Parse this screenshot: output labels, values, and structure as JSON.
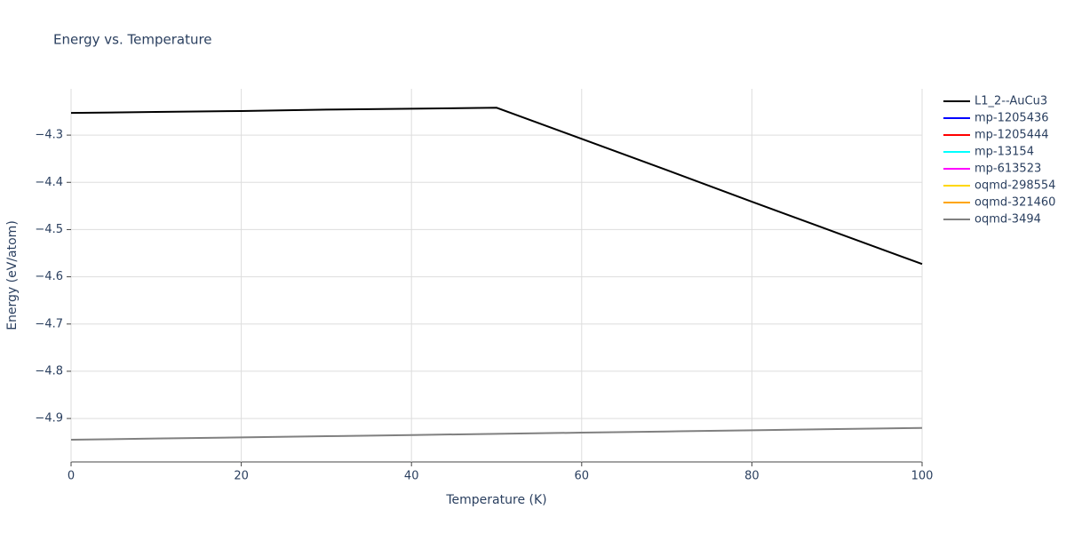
{
  "chart_data": {
    "type": "line",
    "title": "Energy vs. Temperature",
    "x_label": "Temperature (K)",
    "y_label": "Energy (eV/atom)",
    "x": [
      0,
      10,
      20,
      30,
      40,
      50,
      60,
      70,
      80,
      90,
      100
    ],
    "series": [
      {
        "name": "L1_2--AuCu3",
        "color": "#000000",
        "values": [
          -4.253,
          -4.251,
          -4.249,
          -4.246,
          -4.244,
          -4.242,
          -4.308,
          -4.374,
          -4.441,
          -4.507,
          -4.573
        ]
      },
      {
        "name": "mp-1205436",
        "color": "#0000ff",
        "values": [
          null,
          null,
          null,
          null,
          null,
          null,
          null,
          null,
          null,
          null,
          null
        ]
      },
      {
        "name": "mp-1205444",
        "color": "#ff0000",
        "values": [
          null,
          null,
          null,
          null,
          null,
          null,
          null,
          null,
          null,
          null,
          null
        ]
      },
      {
        "name": "mp-13154",
        "color": "#00ffff",
        "values": [
          null,
          null,
          null,
          null,
          null,
          null,
          null,
          null,
          null,
          null,
          null
        ]
      },
      {
        "name": "mp-613523",
        "color": "#ff00ff",
        "values": [
          null,
          null,
          null,
          null,
          null,
          null,
          null,
          null,
          null,
          null,
          null
        ]
      },
      {
        "name": "oqmd-298554",
        "color": "#ffd700",
        "values": [
          null,
          null,
          null,
          null,
          null,
          null,
          null,
          null,
          null,
          null,
          null
        ]
      },
      {
        "name": "oqmd-321460",
        "color": "#ffa500",
        "values": [
          null,
          null,
          null,
          null,
          null,
          null,
          null,
          null,
          null,
          null,
          null
        ]
      },
      {
        "name": "oqmd-3494",
        "color": "#808080",
        "values": [
          -4.945,
          -4.9425,
          -4.94,
          -4.9375,
          -4.935,
          -4.9325,
          -4.93,
          -4.9275,
          -4.925,
          -4.9225,
          -4.92
        ]
      }
    ],
    "xlim": [
      0,
      100
    ],
    "xticks": [
      0,
      20,
      40,
      60,
      80,
      100
    ],
    "ylim": [
      -4.992,
      -4.202
    ],
    "yticks": [
      {
        "value": -4.3,
        "label": "−4.3"
      },
      {
        "value": -4.4,
        "label": "−4.4"
      },
      {
        "value": -4.5,
        "label": "−4.5"
      },
      {
        "value": -4.6,
        "label": "−4.6"
      },
      {
        "value": -4.7,
        "label": "−4.7"
      },
      {
        "value": -4.8,
        "label": "−4.8"
      },
      {
        "value": -4.9,
        "label": "−4.9"
      }
    ],
    "grid": true
  }
}
